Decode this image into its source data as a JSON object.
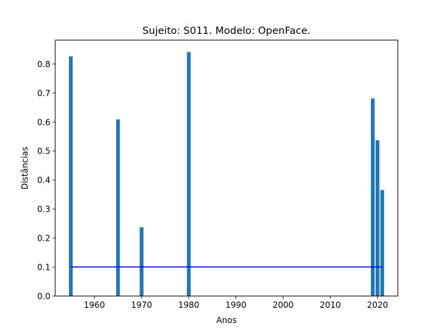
{
  "chart_data": {
    "type": "bar",
    "title": "Sujeito: S011. Modelo: OpenFace.",
    "xlabel": "Anos",
    "ylabel": "Distâncias",
    "xlim": [
      1951.7,
      2024.3
    ],
    "ylim": [
      0,
      0.882
    ],
    "xticks": [
      1960,
      1970,
      1980,
      1990,
      2000,
      2010,
      2020
    ],
    "yticks": [
      0.0,
      0.1,
      0.2,
      0.3,
      0.4,
      0.5,
      0.6,
      0.7,
      0.8
    ],
    "xtick_labels": [
      "1960",
      "1970",
      "1980",
      "1990",
      "2000",
      "2010",
      "2020"
    ],
    "ytick_labels": [
      "0.0",
      "0.1",
      "0.2",
      "0.3",
      "0.4",
      "0.5",
      "0.6",
      "0.7",
      "0.8"
    ],
    "series": [
      {
        "type": "bar",
        "x": [
          1955,
          1965,
          1970,
          1980,
          2019,
          2020,
          2021
        ],
        "values": [
          0.826,
          0.609,
          0.237,
          0.841,
          0.681,
          0.537,
          0.365
        ],
        "color": "#1f77b4"
      },
      {
        "type": "line",
        "x": [
          1955,
          2021
        ],
        "values": [
          0.1,
          0.1
        ],
        "color": "#0000ff"
      }
    ],
    "grid": false
  }
}
